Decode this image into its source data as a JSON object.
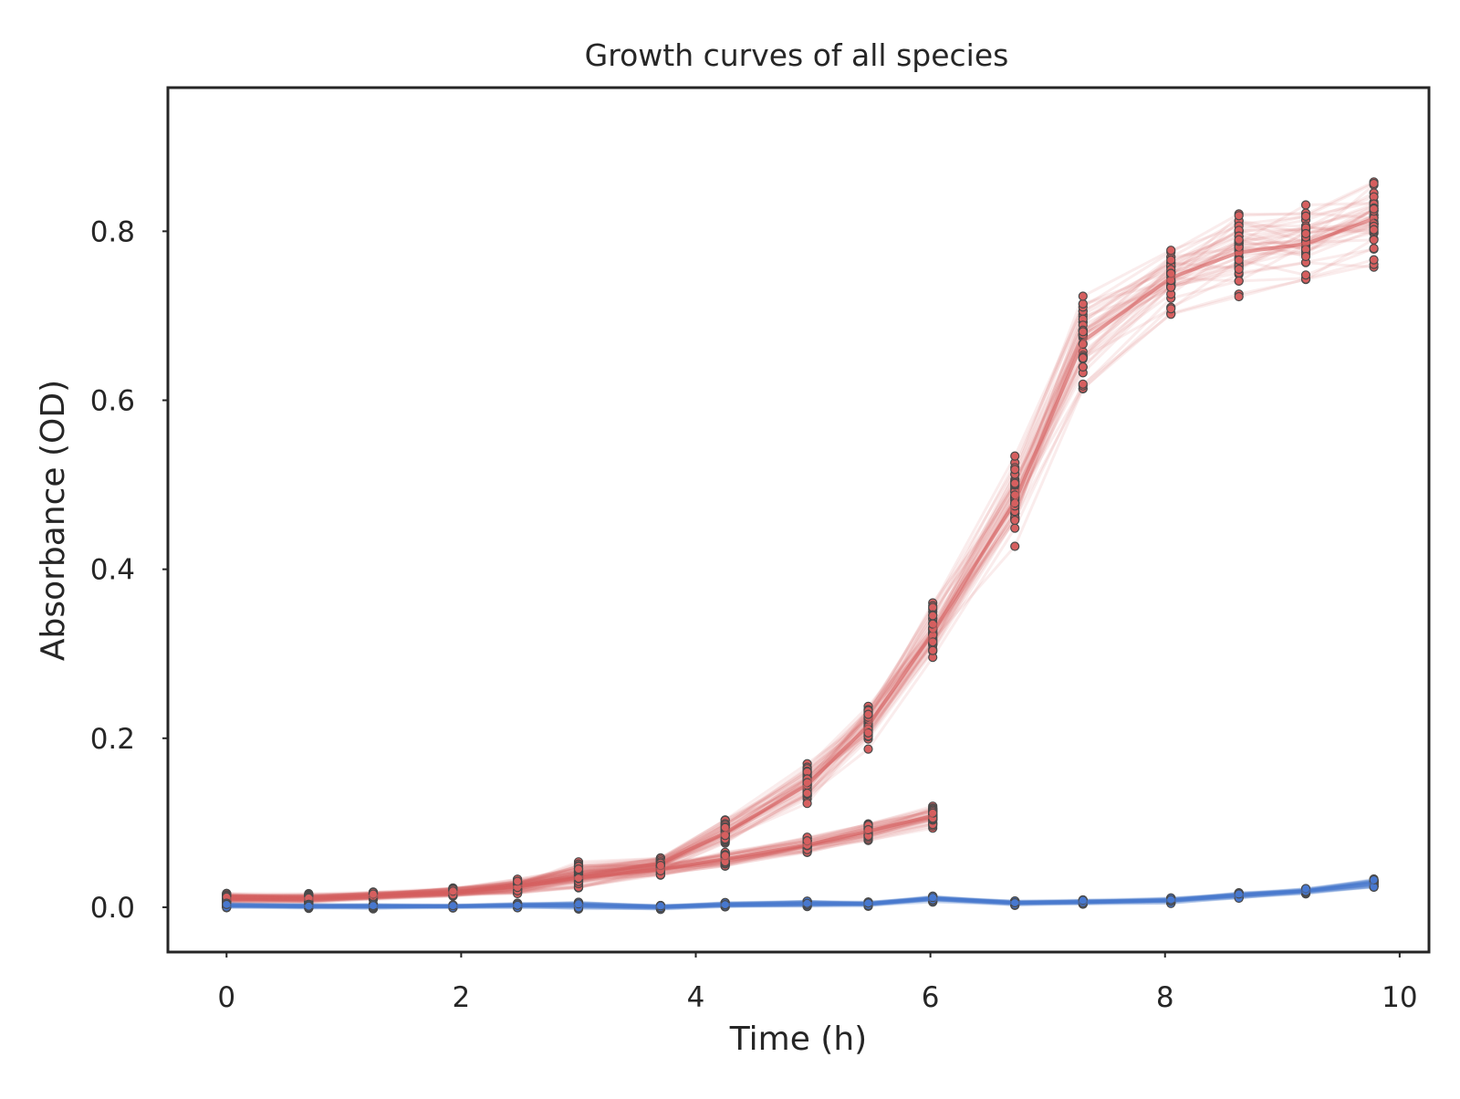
{
  "chart_data": {
    "type": "line",
    "title": "Growth curves of all species",
    "xlabel": "Time (h)",
    "ylabel": "Absorbance (OD)",
    "xlim": [
      -0.5,
      10.25
    ],
    "ylim": [
      -0.053,
      0.97
    ],
    "xticks": [
      0,
      2,
      4,
      6,
      8,
      10
    ],
    "xtick_labels": [
      "0",
      "2",
      "4",
      "6",
      "8",
      "10"
    ],
    "yticks": [
      0.0,
      0.2,
      0.4,
      0.6,
      0.8
    ],
    "ytick_labels": [
      "0.0",
      "0.2",
      "0.4",
      "0.6",
      "0.8"
    ],
    "grid": false,
    "legend": "none",
    "series": [
      {
        "color": "#d65f5f",
        "x": [
          0,
          0.7,
          1.25,
          1.93,
          2.48,
          3.0,
          3.7,
          4.25,
          4.95,
          5.47,
          6.02,
          6.72,
          7.3,
          8.05,
          8.63,
          9.2,
          9.78
        ],
        "values": [
          0.012,
          0.011,
          0.014,
          0.018,
          0.025,
          0.038,
          0.052,
          0.088,
          0.145,
          0.215,
          0.325,
          0.48,
          0.67,
          0.745,
          0.775,
          0.785,
          0.815
        ],
        "spread": [
          0.006,
          0.006,
          0.005,
          0.007,
          0.012,
          0.02,
          0.01,
          0.02,
          0.03,
          0.035,
          0.045,
          0.06,
          0.07,
          0.05,
          0.06,
          0.05,
          0.06
        ]
      },
      {
        "color": "#d65f5f",
        "x": [
          0,
          0.7,
          1.25,
          1.93,
          2.48,
          3.0,
          3.7,
          4.25,
          4.95,
          5.47,
          6.02
        ],
        "values": [
          0.01,
          0.01,
          0.013,
          0.017,
          0.024,
          0.035,
          0.045,
          0.057,
          0.074,
          0.09,
          0.108
        ],
        "spread": [
          0.005,
          0.005,
          0.005,
          0.006,
          0.01,
          0.012,
          0.008,
          0.01,
          0.012,
          0.012,
          0.015
        ]
      },
      {
        "color": "#4878cf",
        "x": [
          0,
          0.7,
          1.25,
          1.93,
          2.48,
          3.0,
          3.7,
          4.25,
          4.95,
          5.47,
          6.02,
          6.72,
          7.3,
          8.05,
          8.63,
          9.2,
          9.78
        ],
        "values": [
          0.002,
          0.001,
          0.001,
          0.001,
          0.002,
          0.002,
          0.0,
          0.003,
          0.004,
          0.004,
          0.01,
          0.005,
          0.006,
          0.008,
          0.014,
          0.019,
          0.028
        ],
        "spread": [
          0.003,
          0.003,
          0.003,
          0.002,
          0.003,
          0.005,
          0.003,
          0.003,
          0.004,
          0.003,
          0.004,
          0.003,
          0.003,
          0.004,
          0.004,
          0.004,
          0.006
        ]
      }
    ]
  }
}
